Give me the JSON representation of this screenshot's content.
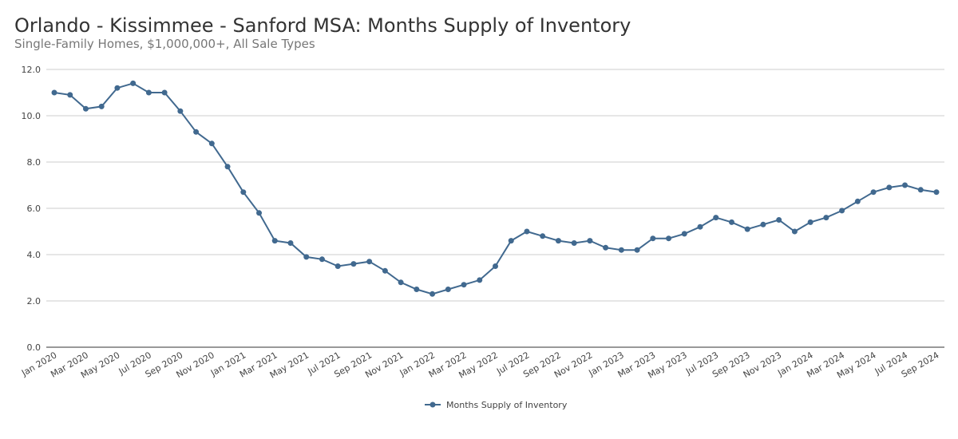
{
  "chart_data": {
    "type": "line",
    "title": "Orlando - Kissimmee - Sanford MSA: Months Supply of Inventory",
    "subtitle": "Single-Family Homes, $1,000,000+, All Sale Types",
    "ylim": [
      0,
      12
    ],
    "yticks": [
      "0.0",
      "2.0",
      "4.0",
      "6.0",
      "8.0",
      "10.0",
      "12.0"
    ],
    "grid": true,
    "legend_position": "bottom",
    "color": "#41698f",
    "x": [
      "Jan 2020",
      "Feb 2020",
      "Mar 2020",
      "Apr 2020",
      "May 2020",
      "Jun 2020",
      "Jul 2020",
      "Aug 2020",
      "Sep 2020",
      "Oct 2020",
      "Nov 2020",
      "Dec 2020",
      "Jan 2021",
      "Feb 2021",
      "Mar 2021",
      "Apr 2021",
      "May 2021",
      "Jun 2021",
      "Jul 2021",
      "Aug 2021",
      "Sep 2021",
      "Oct 2021",
      "Nov 2021",
      "Dec 2021",
      "Jan 2022",
      "Feb 2022",
      "Mar 2022",
      "Apr 2022",
      "May 2022",
      "Jun 2022",
      "Jul 2022",
      "Aug 2022",
      "Sep 2022",
      "Oct 2022",
      "Nov 2022",
      "Dec 2022",
      "Jan 2023",
      "Feb 2023",
      "Mar 2023",
      "Apr 2023",
      "May 2023",
      "Jun 2023",
      "Jul 2023",
      "Aug 2023",
      "Sep 2023",
      "Oct 2023",
      "Nov 2023",
      "Dec 2023",
      "Jan 2024",
      "Feb 2024",
      "Mar 2024",
      "Apr 2024",
      "May 2024",
      "Jun 2024",
      "Jul 2024",
      "Aug 2024",
      "Sep 2024"
    ],
    "series": [
      {
        "name": "Months Supply of Inventory",
        "values": [
          11.0,
          10.9,
          10.3,
          10.4,
          11.2,
          11.4,
          11.0,
          11.0,
          10.2,
          9.3,
          8.8,
          7.8,
          6.7,
          5.8,
          4.6,
          4.5,
          3.9,
          3.8,
          3.5,
          3.6,
          3.7,
          3.3,
          2.8,
          2.5,
          2.3,
          2.5,
          2.7,
          2.9,
          3.5,
          4.6,
          5.0,
          4.8,
          4.6,
          4.5,
          4.6,
          4.3,
          4.2,
          4.2,
          4.7,
          4.7,
          4.9,
          5.2,
          5.6,
          5.4,
          5.1,
          5.3,
          5.5,
          5.0,
          5.4,
          5.6,
          5.9,
          6.3,
          6.7,
          6.9,
          7.0,
          6.8,
          6.7
        ]
      }
    ]
  }
}
